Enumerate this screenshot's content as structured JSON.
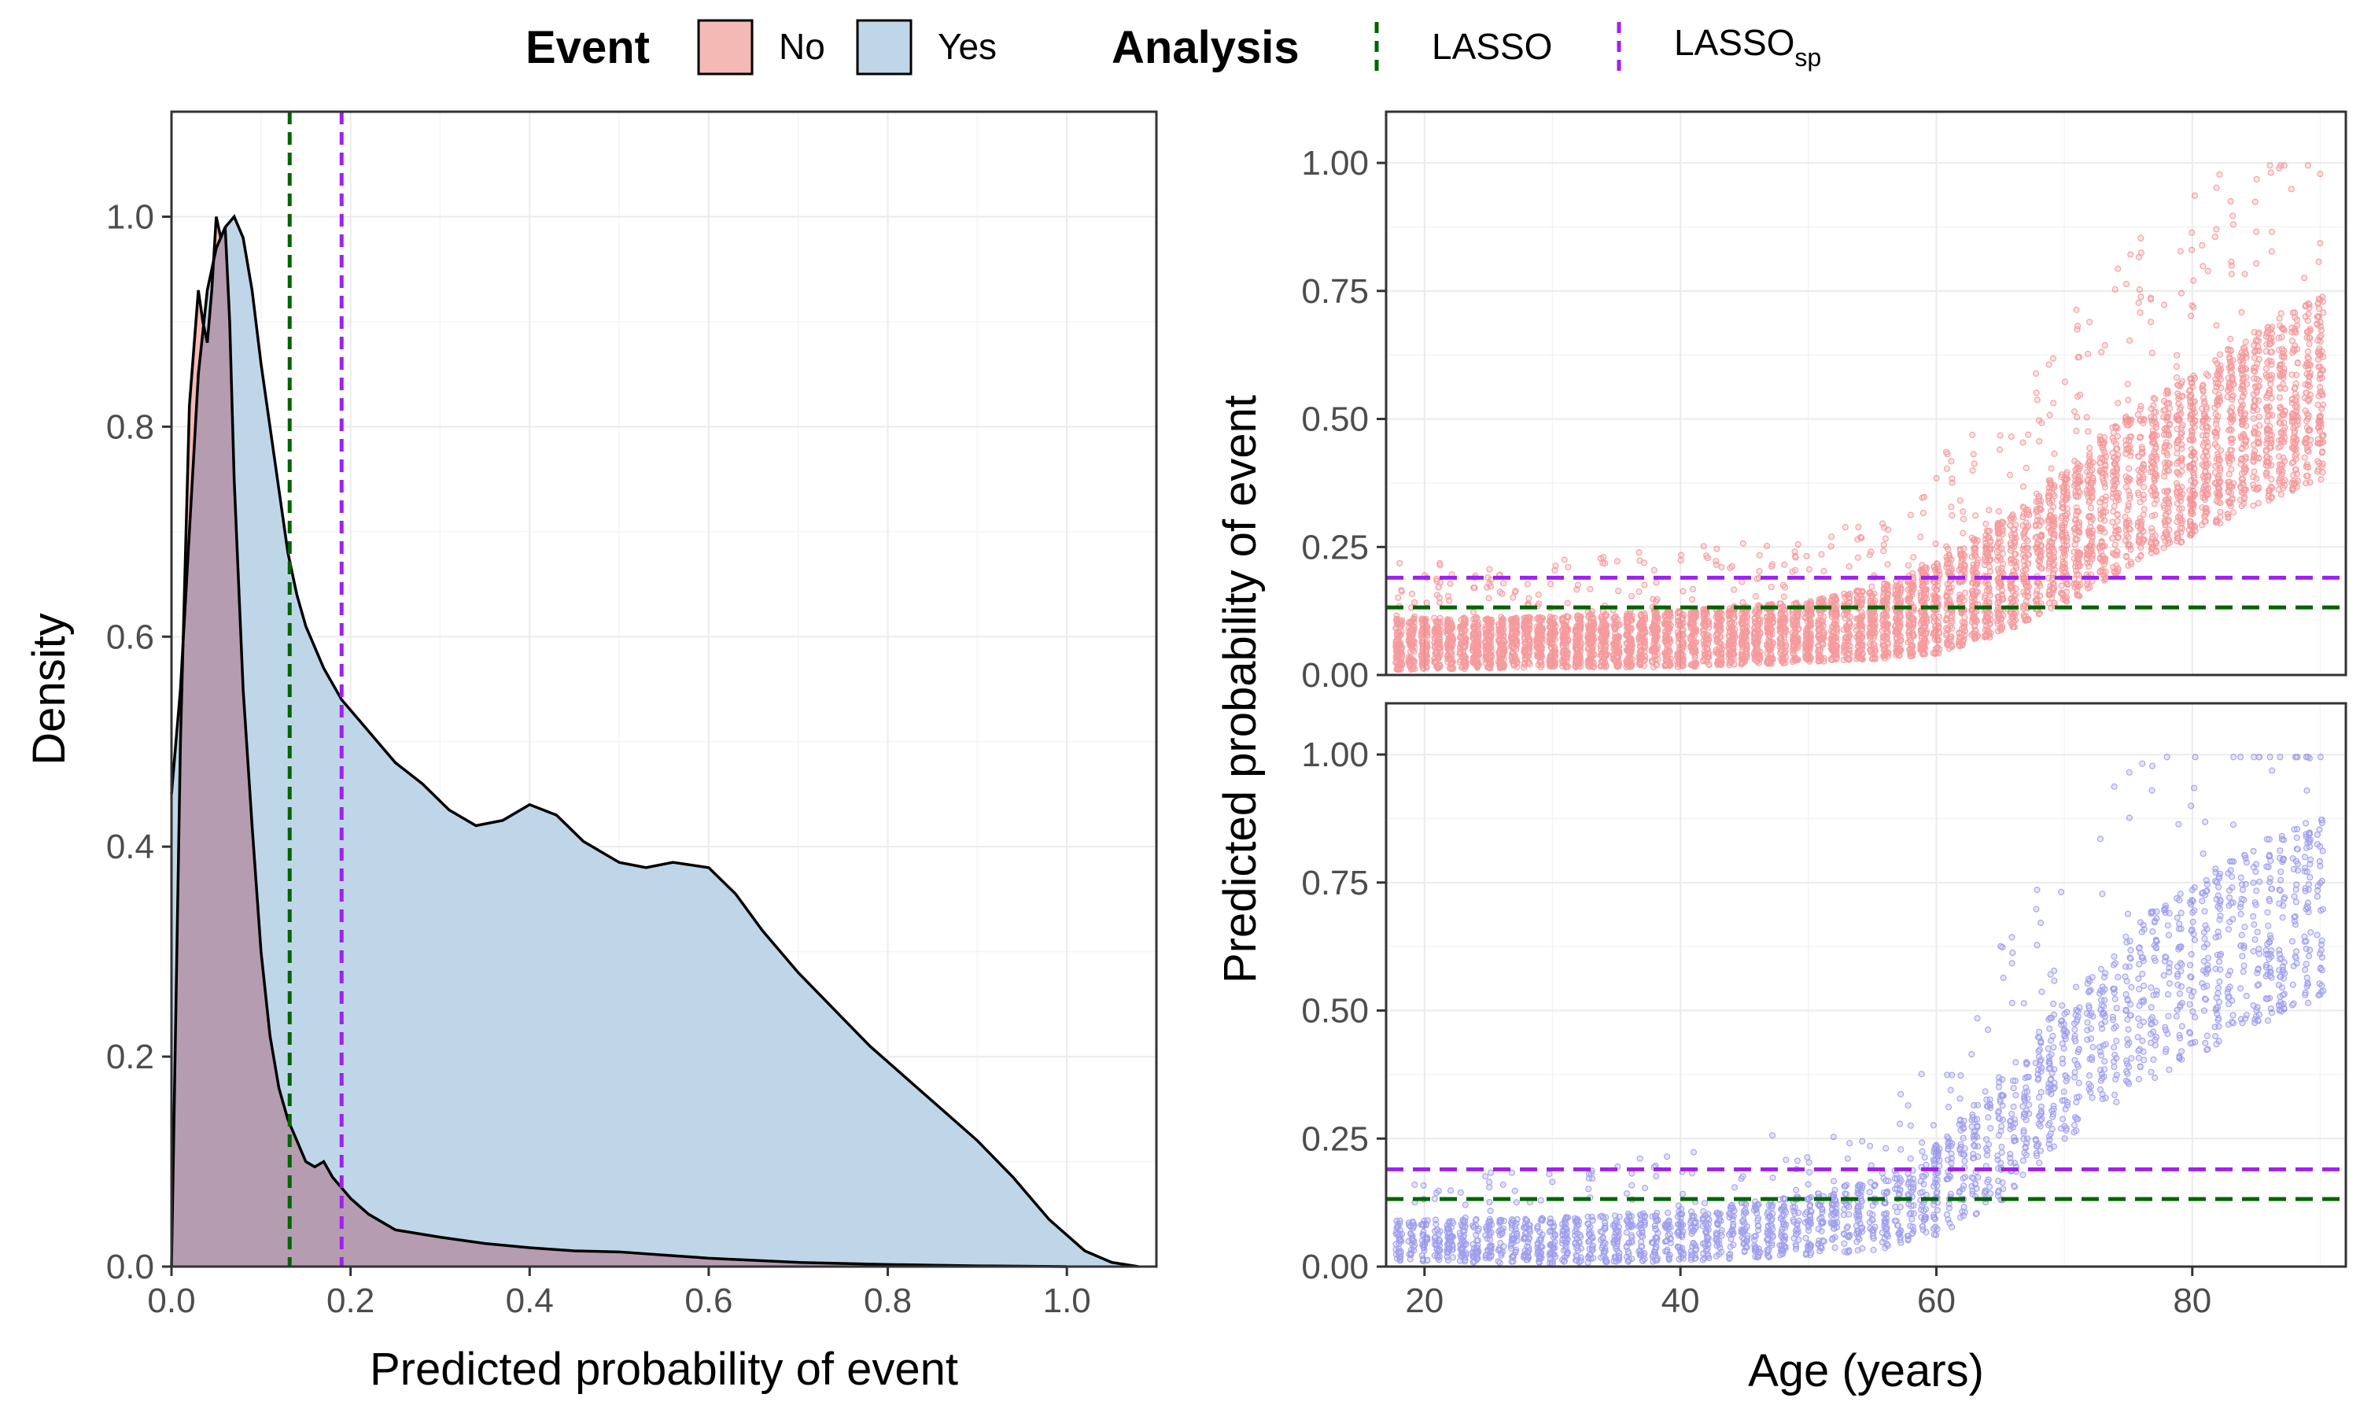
{
  "legend": {
    "event_title": "Event",
    "event_items": [
      {
        "label": "No",
        "fill": "#F4B8B5"
      },
      {
        "label": "Yes",
        "fill": "#BFD6E8"
      }
    ],
    "analysis_title": "Analysis",
    "analysis_items": [
      {
        "label": "LASSO",
        "label_sub": "",
        "color": "#006400"
      },
      {
        "label": "LASSO",
        "label_sub": "sp",
        "color": "#A020F0"
      }
    ]
  },
  "colors": {
    "no_fill": "#F4B8B5",
    "yes_fill": "#BFD6E8",
    "overlap_fill": "#B59CB0",
    "lasso": "#006400",
    "lasso_sp": "#A020F0",
    "points_no": "#E8141A",
    "points_yes": "#2020D8"
  },
  "chart_data": [
    {
      "type": "area",
      "xlabel": "Predicted probability of event",
      "ylabel": "Density",
      "xlim": [
        0.0,
        1.1
      ],
      "ylim": [
        0.0,
        1.1
      ],
      "xticks": [
        "0.0",
        "0.2",
        "0.4",
        "0.6",
        "0.8",
        "1.0"
      ],
      "xtick_values": [
        0.0,
        0.2,
        0.4,
        0.6,
        0.8,
        1.0
      ],
      "yticks": [
        "0.0",
        "0.2",
        "0.4",
        "0.6",
        "0.8",
        "1.0"
      ],
      "ytick_values": [
        0.0,
        0.2,
        0.4,
        0.6,
        0.8,
        1.0
      ],
      "grid": true,
      "series": [
        {
          "name": "No",
          "x": [
            0.0,
            0.01,
            0.02,
            0.03,
            0.035,
            0.04,
            0.045,
            0.05,
            0.055,
            0.06,
            0.065,
            0.07,
            0.08,
            0.09,
            0.1,
            0.11,
            0.12,
            0.13,
            0.14,
            0.15,
            0.16,
            0.17,
            0.18,
            0.19,
            0.2,
            0.22,
            0.25,
            0.3,
            0.35,
            0.4,
            0.45,
            0.5,
            0.55,
            0.6,
            0.7,
            0.8,
            0.9,
            1.0
          ],
          "y": [
            0.0,
            0.5,
            0.82,
            0.93,
            0.9,
            0.88,
            0.93,
            1.0,
            0.98,
            0.99,
            0.9,
            0.75,
            0.55,
            0.42,
            0.3,
            0.22,
            0.17,
            0.14,
            0.12,
            0.1,
            0.095,
            0.1,
            0.085,
            0.075,
            0.065,
            0.05,
            0.035,
            0.028,
            0.022,
            0.018,
            0.015,
            0.014,
            0.011,
            0.008,
            0.004,
            0.002,
            0.0007,
            0.0
          ]
        },
        {
          "name": "Yes",
          "x": [
            0.0,
            0.01,
            0.02,
            0.03,
            0.04,
            0.05,
            0.06,
            0.07,
            0.08,
            0.09,
            0.1,
            0.11,
            0.12,
            0.13,
            0.14,
            0.15,
            0.17,
            0.19,
            0.21,
            0.23,
            0.25,
            0.28,
            0.31,
            0.34,
            0.37,
            0.4,
            0.43,
            0.46,
            0.5,
            0.53,
            0.56,
            0.6,
            0.63,
            0.66,
            0.7,
            0.74,
            0.78,
            0.82,
            0.86,
            0.9,
            0.94,
            0.98,
            1.02,
            1.05,
            1.08
          ],
          "y": [
            0.45,
            0.55,
            0.7,
            0.85,
            0.93,
            0.97,
            0.99,
            1.0,
            0.98,
            0.93,
            0.86,
            0.8,
            0.74,
            0.68,
            0.64,
            0.61,
            0.57,
            0.54,
            0.52,
            0.5,
            0.48,
            0.46,
            0.435,
            0.42,
            0.425,
            0.44,
            0.43,
            0.405,
            0.385,
            0.38,
            0.385,
            0.38,
            0.355,
            0.32,
            0.28,
            0.245,
            0.21,
            0.18,
            0.15,
            0.12,
            0.085,
            0.045,
            0.015,
            0.004,
            0.0
          ]
        }
      ],
      "vlines": [
        {
          "name": "LASSO",
          "x": 0.132
        },
        {
          "name": "LASSOsp",
          "x": 0.19
        }
      ]
    },
    {
      "type": "scatter",
      "panel": "No",
      "xlabel": "Age (years)",
      "ylabel": "Predicted probability of event",
      "xlim": [
        17,
        92
      ],
      "ylim": [
        0.0,
        1.1
      ],
      "xticks": [
        "20",
        "40",
        "60",
        "80"
      ],
      "xtick_values": [
        20,
        40,
        60,
        80
      ],
      "yticks": [
        "0.00",
        "0.25",
        "0.50",
        "0.75",
        "1.00"
      ],
      "ytick_values": [
        0.0,
        0.25,
        0.5,
        0.75,
        1.0
      ],
      "grid": true,
      "hlines": [
        {
          "name": "LASSO",
          "y": 0.132
        },
        {
          "name": "LASSOsp",
          "y": 0.19
        }
      ],
      "trend": {
        "age": [
          18,
          30,
          40,
          50,
          55,
          60,
          65,
          70,
          75,
          80,
          85,
          90
        ],
        "median": [
          0.06,
          0.065,
          0.07,
          0.085,
          0.1,
          0.13,
          0.19,
          0.27,
          0.36,
          0.43,
          0.5,
          0.56
        ],
        "spread": [
          0.05,
          0.05,
          0.055,
          0.06,
          0.07,
          0.09,
          0.11,
          0.13,
          0.15,
          0.16,
          0.17,
          0.18
        ]
      }
    },
    {
      "type": "scatter",
      "panel": "Yes",
      "xlabel": "Age (years)",
      "ylabel": "Predicted probability of event",
      "xlim": [
        17,
        92
      ],
      "ylim": [
        0.0,
        1.1
      ],
      "xticks": [
        "20",
        "40",
        "60",
        "80"
      ],
      "xtick_values": [
        20,
        40,
        60,
        80
      ],
      "yticks": [
        "0.00",
        "0.25",
        "0.50",
        "0.75",
        "1.00"
      ],
      "ytick_values": [
        0.0,
        0.25,
        0.5,
        0.75,
        1.0
      ],
      "grid": true,
      "hlines": [
        {
          "name": "LASSO",
          "y": 0.132
        },
        {
          "name": "LASSOsp",
          "y": 0.19
        }
      ],
      "trend": {
        "age": [
          18,
          30,
          40,
          50,
          55,
          60,
          65,
          70,
          75,
          80,
          85,
          90
        ],
        "median": [
          0.05,
          0.05,
          0.06,
          0.08,
          0.1,
          0.15,
          0.25,
          0.38,
          0.5,
          0.58,
          0.65,
          0.7
        ],
        "spread": [
          0.04,
          0.045,
          0.05,
          0.06,
          0.07,
          0.09,
          0.12,
          0.14,
          0.16,
          0.17,
          0.18,
          0.18
        ]
      }
    }
  ]
}
